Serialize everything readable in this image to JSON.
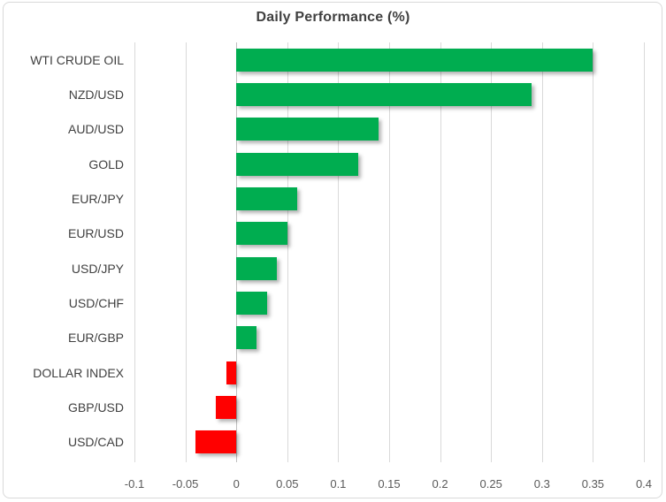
{
  "chart_data": {
    "type": "bar",
    "orientation": "horizontal",
    "title": "Daily Performance (%)",
    "categories": [
      "WTI CRUDE OIL",
      "NZD/USD",
      "AUD/USD",
      "GOLD",
      "EUR/JPY",
      "EUR/USD",
      "USD/JPY",
      "USD/CHF",
      "EUR/GBP",
      "DOLLAR INDEX",
      "GBP/USD",
      "USD/CAD"
    ],
    "values": [
      0.35,
      0.29,
      0.14,
      0.12,
      0.06,
      0.05,
      0.04,
      0.03,
      0.02,
      -0.01,
      -0.02,
      -0.04
    ],
    "xlim": [
      -0.1,
      0.4
    ],
    "xticks": [
      -0.1,
      -0.05,
      0,
      0.05,
      0.1,
      0.15,
      0.2,
      0.25,
      0.3,
      0.35,
      0.4
    ],
    "tick_labels": [
      "-0.1",
      "-0.05",
      "0",
      "0.05",
      "0.1",
      "0.15",
      "0.2",
      "0.25",
      "0.3",
      "0.35",
      "0.4"
    ],
    "grid": true,
    "legend": "none",
    "colors": {
      "positive_bar": "#00AD50",
      "negative_bar": "#FF0000",
      "gridline": "#D9D9D9",
      "zero_axis": "#BFBFBF",
      "chart_border": "#D9D9D9",
      "title_text": "#404040",
      "category_text": "#404040",
      "tick_text": "#595959",
      "background": "#FFFFFF"
    }
  }
}
